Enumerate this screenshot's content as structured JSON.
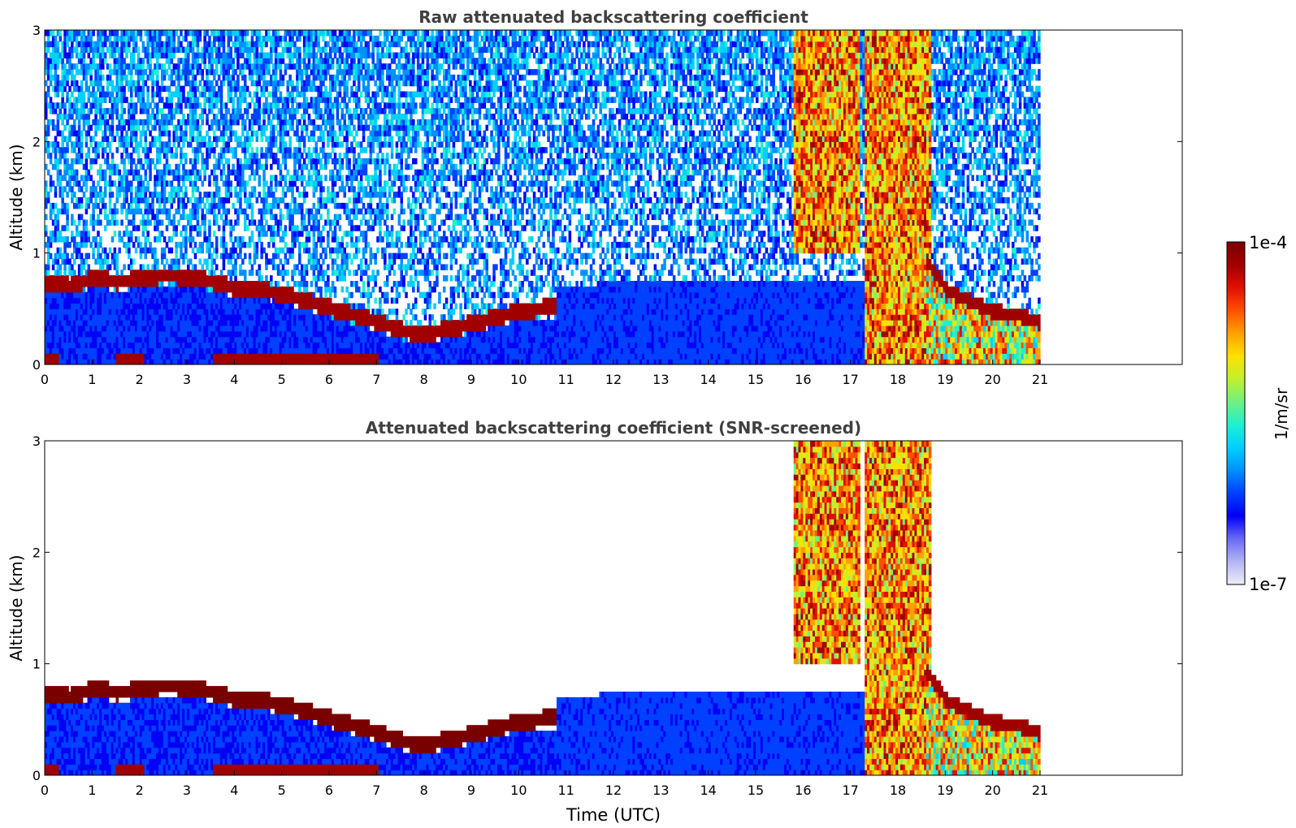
{
  "chart_data": [
    {
      "type": "heatmap",
      "title": "Raw attenuated backscattering coefficient",
      "xlabel": "",
      "ylabel": "Altitude (km)",
      "xlim": [
        0,
        24
      ],
      "ylim": [
        0,
        3
      ],
      "xticks": [
        "0",
        "1",
        "2",
        "3",
        "4",
        "5",
        "6",
        "7",
        "8",
        "9",
        "10",
        "11",
        "12",
        "13",
        "14",
        "15",
        "16",
        "17",
        "18",
        "19",
        "20",
        "21"
      ],
      "yticks": [
        "0",
        "1",
        "2",
        "3"
      ],
      "data_end_hour": 21,
      "features": {
        "boundary_layer_top_km": [
          [
            0,
            0.72
          ],
          [
            0.5,
            0.68
          ],
          [
            1,
            0.75
          ],
          [
            1.5,
            0.72
          ],
          [
            2,
            0.74
          ],
          [
            2.5,
            0.78
          ],
          [
            3,
            0.76
          ],
          [
            3.5,
            0.72
          ],
          [
            4,
            0.66
          ],
          [
            4.5,
            0.65
          ],
          [
            5,
            0.6
          ],
          [
            5.5,
            0.55
          ],
          [
            6,
            0.48
          ],
          [
            6.5,
            0.42
          ],
          [
            7,
            0.36
          ],
          [
            7.5,
            0.28
          ],
          [
            8,
            0.25
          ],
          [
            8.5,
            0.3
          ],
          [
            9,
            0.34
          ],
          [
            9.5,
            0.4
          ],
          [
            10,
            0.45
          ],
          [
            10.5,
            0.48
          ]
        ],
        "high_cloud": [
          {
            "start_h": 15.8,
            "end_h": 17.2,
            "base_km": 1.0,
            "top_km": 3.0
          },
          {
            "start_h": 17.3,
            "end_h": 18.7,
            "base_km": 0.0,
            "top_km": 3.0
          }
        ],
        "evening_layer_km": [
          [
            18.6,
            0.9
          ],
          [
            19,
            0.65
          ],
          [
            19.5,
            0.55
          ],
          [
            20,
            0.45
          ],
          [
            20.5,
            0.42
          ],
          [
            21,
            0.35
          ]
        ]
      }
    },
    {
      "type": "heatmap",
      "title": "Attenuated backscattering coefficient (SNR-screened)",
      "xlabel": "Time (UTC)",
      "ylabel": "Altitude (km)",
      "xlim": [
        0,
        24
      ],
      "ylim": [
        0,
        3
      ],
      "xticks": [
        "0",
        "1",
        "2",
        "3",
        "4",
        "5",
        "6",
        "7",
        "8",
        "9",
        "10",
        "11",
        "12",
        "13",
        "14",
        "15",
        "16",
        "17",
        "18",
        "19",
        "20",
        "21"
      ],
      "yticks": [
        "0",
        "1",
        "2",
        "3"
      ],
      "data_end_hour": 21
    }
  ],
  "colorbar": {
    "label": "1/m/sr",
    "max_label": "1e-4",
    "min_label": "1e-7",
    "colors": [
      "#ededf7",
      "#b4b4f5",
      "#6a6af5",
      "#0000f5",
      "#0040ff",
      "#0090ff",
      "#00d0ff",
      "#20f0d0",
      "#70f080",
      "#c0f030",
      "#ffe000",
      "#ffa000",
      "#ff5000",
      "#e01000",
      "#a00000",
      "#7a0000"
    ]
  }
}
